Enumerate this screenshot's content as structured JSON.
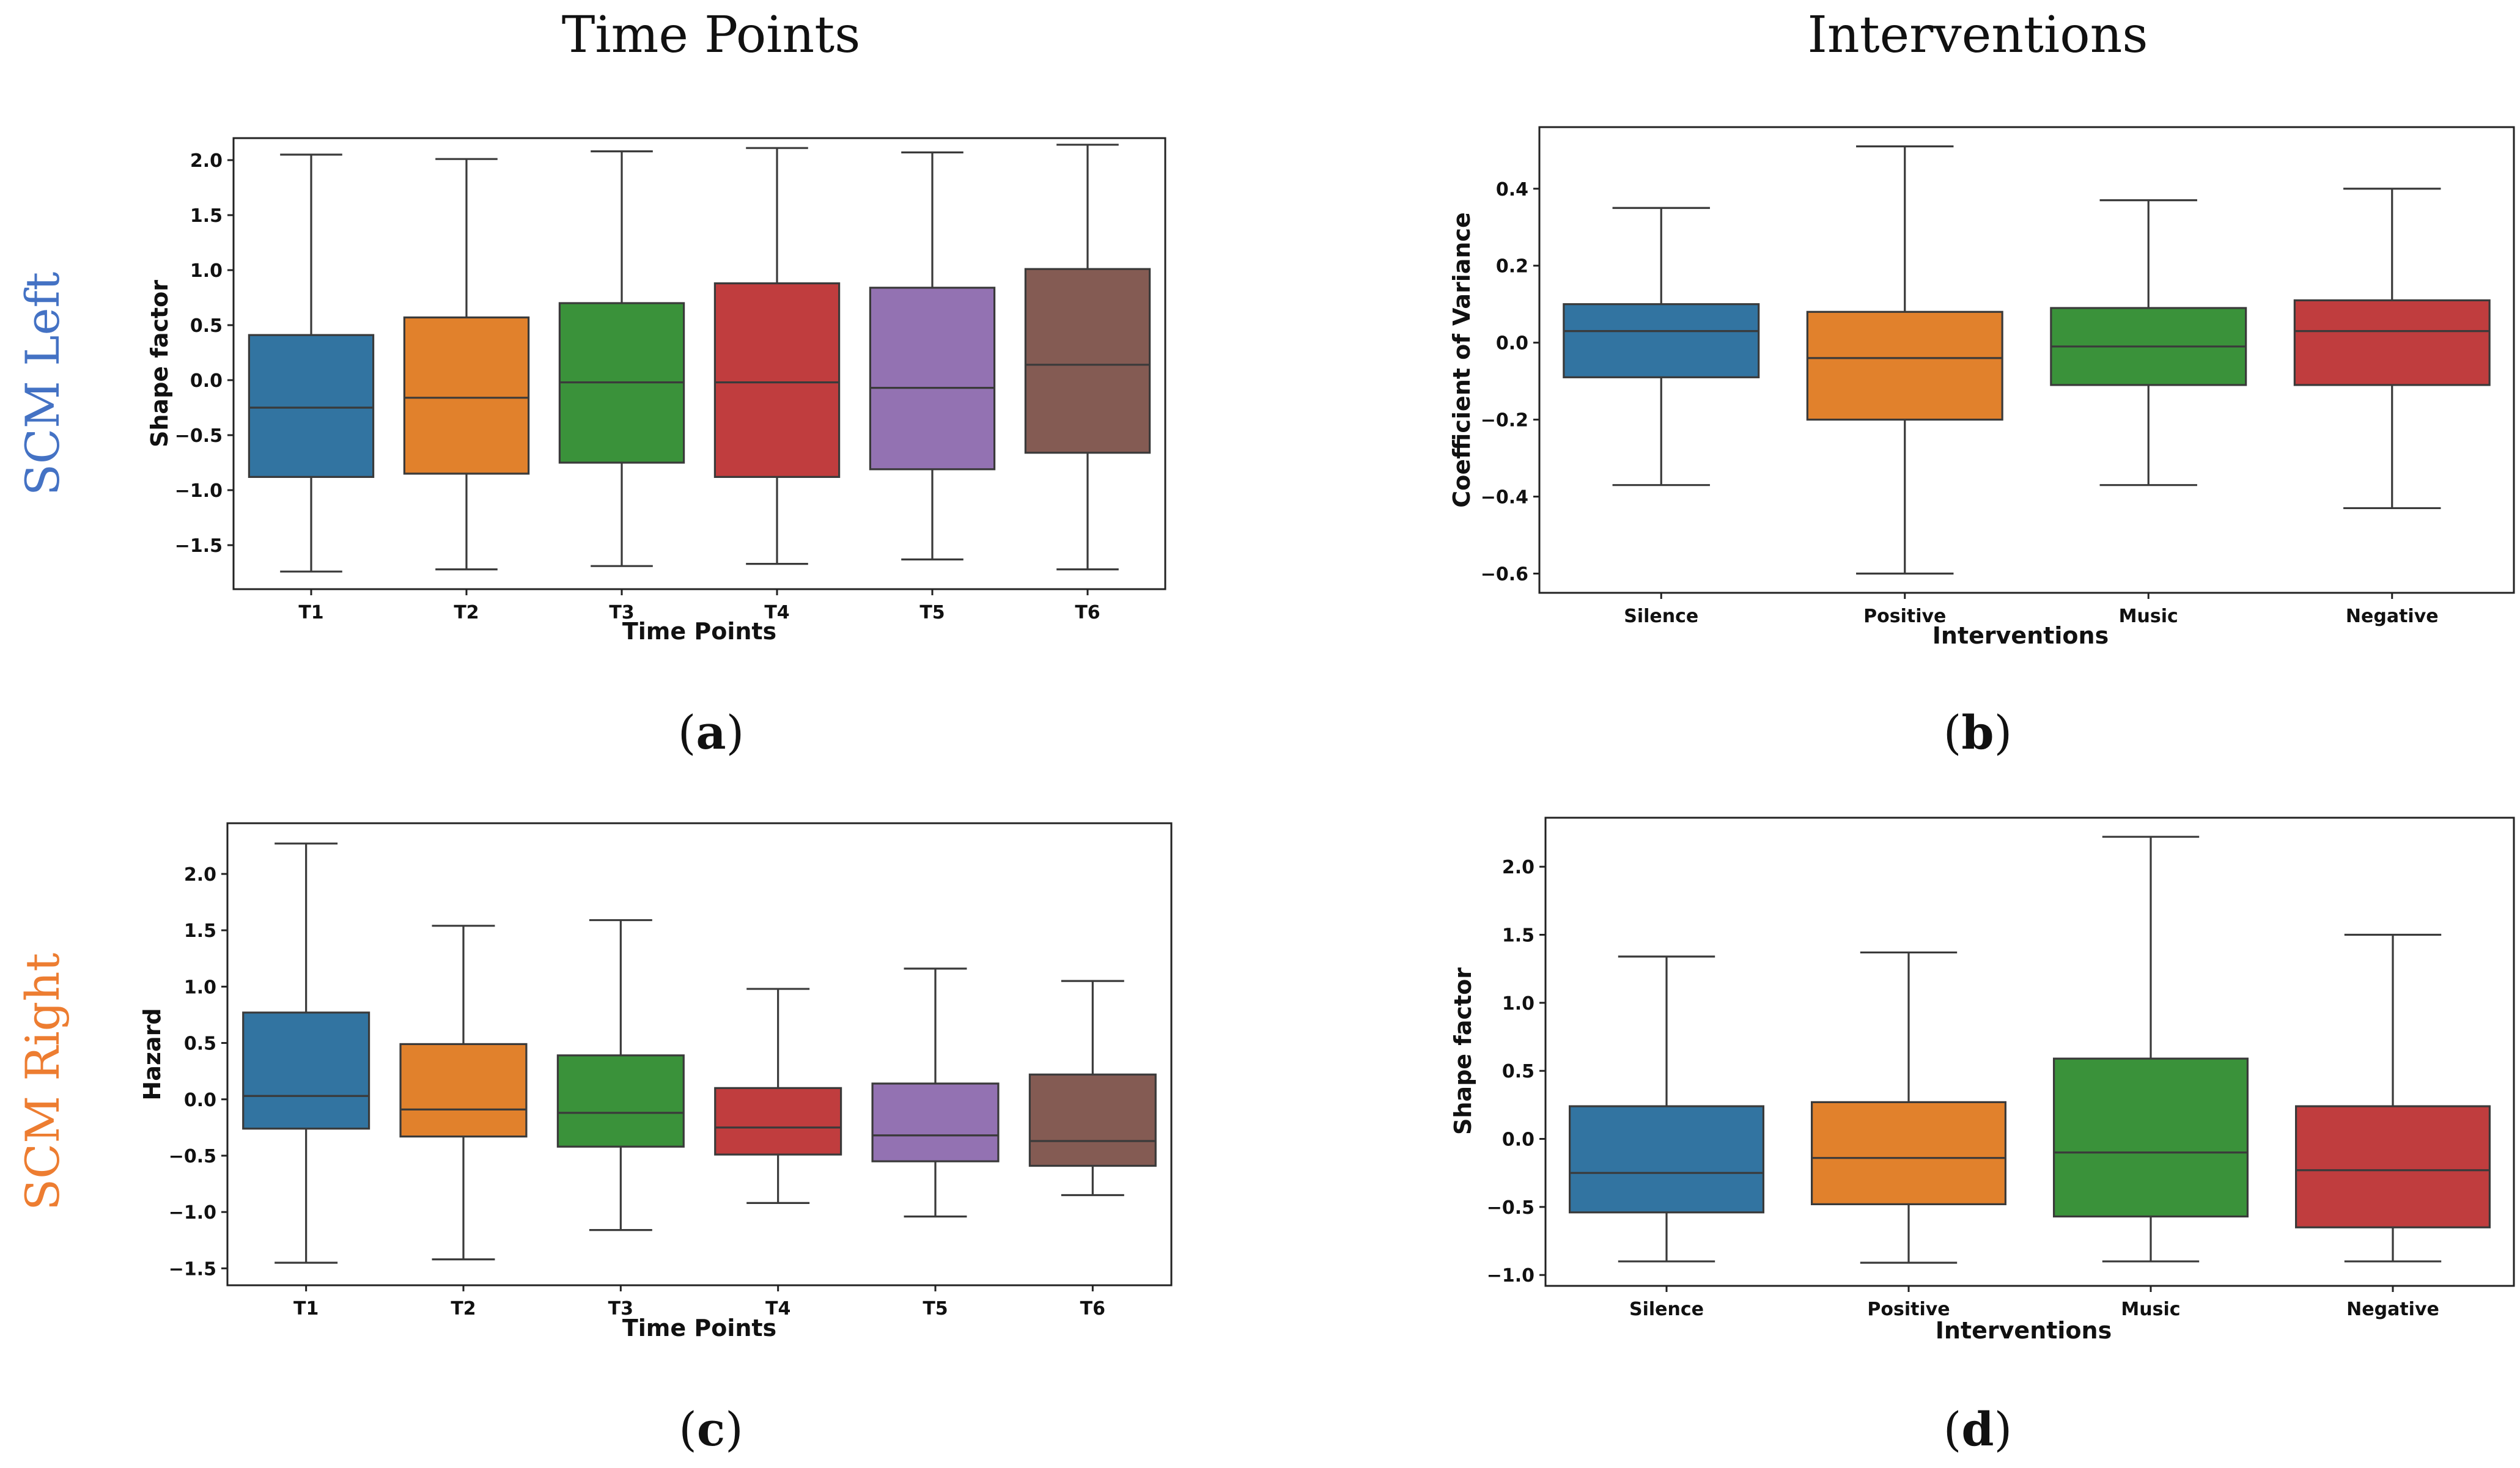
{
  "headings": {
    "col_left": "Time Points",
    "col_right": "Interventions",
    "row_top": "SCM Left",
    "row_bottom": "SCM Right",
    "row_top_color": "#4472C4",
    "row_bottom_color": "#ED7D31"
  },
  "palette": [
    "#3274a1",
    "#e1812c",
    "#3a923a",
    "#c03d3e",
    "#9372b2",
    "#845b53"
  ],
  "chart_data": [
    {
      "id": "a",
      "panel_label": "a",
      "type": "box",
      "xlabel": "Time Points",
      "ylabel": "Shape factor",
      "ylim": [
        -1.9,
        2.2
      ],
      "yticks": [
        -1.5,
        -1.0,
        -0.5,
        0.0,
        0.5,
        1.0,
        1.5,
        2.0
      ],
      "ytick_labels": [
        "−1.5",
        "−1.0",
        "−0.5",
        "0.0",
        "0.5",
        "1.0",
        "1.5",
        "2.0"
      ],
      "categories": [
        "T1",
        "T2",
        "T3",
        "T4",
        "T5",
        "T6"
      ],
      "boxes": [
        {
          "min": -1.74,
          "q1": -0.88,
          "median": -0.25,
          "q3": 0.41,
          "max": 2.05
        },
        {
          "min": -1.72,
          "q1": -0.85,
          "median": -0.16,
          "q3": 0.57,
          "max": 2.01
        },
        {
          "min": -1.69,
          "q1": -0.75,
          "median": -0.02,
          "q3": 0.7,
          "max": 2.08
        },
        {
          "min": -1.67,
          "q1": -0.88,
          "median": -0.02,
          "q3": 0.88,
          "max": 2.11
        },
        {
          "min": -1.63,
          "q1": -0.81,
          "median": -0.07,
          "q3": 0.84,
          "max": 2.07
        },
        {
          "min": -1.72,
          "q1": -0.66,
          "median": 0.14,
          "q3": 1.01,
          "max": 2.14
        }
      ]
    },
    {
      "id": "b",
      "panel_label": "b",
      "type": "box",
      "xlabel": "Interventions",
      "ylabel": "Coefficient of Variance",
      "ylim": [
        -0.65,
        0.56
      ],
      "yticks": [
        -0.6,
        -0.4,
        -0.2,
        0.0,
        0.2,
        0.4
      ],
      "ytick_labels": [
        "−0.6",
        "−0.4",
        "−0.2",
        "0.0",
        "0.2",
        "0.4"
      ],
      "categories": [
        "Silence",
        "Positive",
        "Music",
        "Negative"
      ],
      "boxes": [
        {
          "min": -0.37,
          "q1": -0.09,
          "median": 0.03,
          "q3": 0.1,
          "max": 0.35
        },
        {
          "min": -0.6,
          "q1": -0.2,
          "median": -0.04,
          "q3": 0.08,
          "max": 0.51
        },
        {
          "min": -0.37,
          "q1": -0.11,
          "median": -0.01,
          "q3": 0.09,
          "max": 0.37
        },
        {
          "min": -0.43,
          "q1": -0.11,
          "median": 0.03,
          "q3": 0.11,
          "max": 0.4
        }
      ]
    },
    {
      "id": "c",
      "panel_label": "c",
      "type": "box",
      "xlabel": "Time Points",
      "ylabel": "Hazard",
      "ylim": [
        -1.65,
        2.45
      ],
      "yticks": [
        -1.5,
        -1.0,
        -0.5,
        0.0,
        0.5,
        1.0,
        1.5,
        2.0
      ],
      "ytick_labels": [
        "−1.5",
        "−1.0",
        "−0.5",
        "0.0",
        "0.5",
        "1.0",
        "1.5",
        "2.0"
      ],
      "categories": [
        "T1",
        "T2",
        "T3",
        "T4",
        "T5",
        "T6"
      ],
      "boxes": [
        {
          "min": -1.45,
          "q1": -0.26,
          "median": 0.03,
          "q3": 0.77,
          "max": 2.27
        },
        {
          "min": -1.42,
          "q1": -0.33,
          "median": -0.09,
          "q3": 0.49,
          "max": 1.54
        },
        {
          "min": -1.16,
          "q1": -0.42,
          "median": -0.12,
          "q3": 0.39,
          "max": 1.59
        },
        {
          "min": -0.92,
          "q1": -0.49,
          "median": -0.25,
          "q3": 0.1,
          "max": 0.98
        },
        {
          "min": -1.04,
          "q1": -0.55,
          "median": -0.32,
          "q3": 0.14,
          "max": 1.16
        },
        {
          "min": -0.85,
          "q1": -0.59,
          "median": -0.37,
          "q3": 0.22,
          "max": 1.05
        }
      ]
    },
    {
      "id": "d",
      "panel_label": "d",
      "type": "box",
      "xlabel": "Interventions",
      "ylabel": "Shape factor",
      "ylim": [
        -1.08,
        2.36
      ],
      "yticks": [
        -1.0,
        -0.5,
        0.0,
        0.5,
        1.0,
        1.5,
        2.0
      ],
      "ytick_labels": [
        "−1.0",
        "−0.5",
        "0.0",
        "0.5",
        "1.0",
        "1.5",
        "2.0"
      ],
      "categories": [
        "Silence",
        "Positive",
        "Music",
        "Negative"
      ],
      "boxes": [
        {
          "min": -0.9,
          "q1": -0.54,
          "median": -0.25,
          "q3": 0.24,
          "max": 1.34
        },
        {
          "min": -0.91,
          "q1": -0.48,
          "median": -0.14,
          "q3": 0.27,
          "max": 1.37
        },
        {
          "min": -0.9,
          "q1": -0.57,
          "median": -0.1,
          "q3": 0.59,
          "max": 2.22
        },
        {
          "min": -0.9,
          "q1": -0.65,
          "median": -0.23,
          "q3": 0.24,
          "max": 1.5
        }
      ]
    }
  ]
}
